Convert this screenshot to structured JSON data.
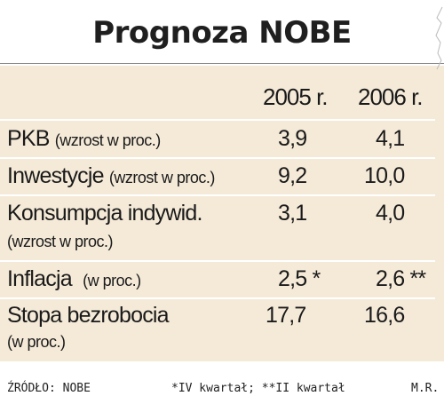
{
  "title": "Prognoza NOBE",
  "headers": {
    "y1": "2005 r.",
    "y2": "2006 r."
  },
  "rows": [
    {
      "label": "PKB",
      "qualifier": "(wzrost w proc.)",
      "v1": "3,9",
      "v2": "4,1"
    },
    {
      "label": "Inwestycje",
      "qualifier": "(wzrost w proc.)",
      "v1": "9,2",
      "v2": "10,0"
    },
    {
      "label": "Konsumpcja indywid.",
      "qualifier": "(wzrost w proc.)",
      "v1": "3,1",
      "v2": "4,0"
    },
    {
      "label": "Inflacja",
      "qualifier": "(w proc.)",
      "v1": "2,5 *",
      "v2": "2,6 **"
    },
    {
      "label": "Stopa bezrobocia",
      "qualifier": "(w proc.)",
      "v1": "17,7",
      "v2": "16,6"
    }
  ],
  "footer": {
    "source": "ŹRÓDŁO: NOBE",
    "note": "*IV kwartał; **II kwartał",
    "author": "M.R."
  }
}
